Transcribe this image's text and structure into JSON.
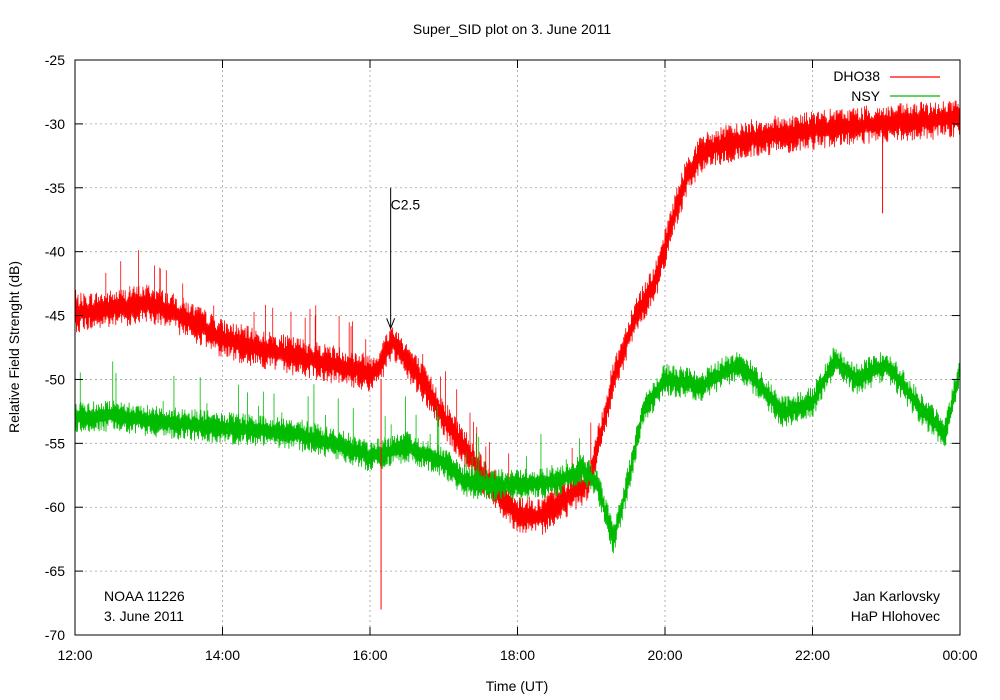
{
  "chart_data": {
    "type": "line",
    "title": "Super_SID plot on 3. June 2011",
    "xlabel": "Time (UT)",
    "ylabel": "Relative Field Strenght (dB)",
    "xlim": [
      0,
      12
    ],
    "ylim": [
      -70,
      -25
    ],
    "x_tick_values": [
      0,
      2,
      4,
      6,
      8,
      10,
      12
    ],
    "x_tick_labels": [
      "12:00",
      "14:00",
      "16:00",
      "18:00",
      "20:00",
      "22:00",
      "00:00"
    ],
    "y_ticks": [
      -70,
      -65,
      -60,
      -55,
      -50,
      -45,
      -40,
      -35,
      -30,
      -25
    ],
    "grid": true,
    "legend_position": "top-right",
    "series": [
      {
        "name": "DHO38",
        "color": "#ff0000",
        "x": [
          0,
          0.5,
          1.0,
          1.5,
          2.0,
          2.5,
          3.0,
          3.5,
          4.0,
          4.1,
          4.3,
          4.5,
          4.8,
          5.0,
          5.3,
          5.6,
          6.0,
          6.3,
          6.6,
          6.9,
          7.0,
          7.3,
          7.6,
          7.9,
          8.1,
          8.3,
          8.5,
          8.7,
          9.0,
          9.3,
          9.6,
          10.0,
          10.5,
          11.0,
          11.5,
          12.0
        ],
        "values": [
          -44.8,
          -44.5,
          -44.0,
          -45.2,
          -46.8,
          -47.6,
          -48.2,
          -48.8,
          -49.5,
          -49.2,
          -47.0,
          -48.5,
          -51.0,
          -53.0,
          -55.5,
          -58.0,
          -60.5,
          -60.8,
          -59.5,
          -58.3,
          -57.5,
          -50.0,
          -45.0,
          -42.0,
          -37.5,
          -34.0,
          -32.3,
          -31.8,
          -31.4,
          -31.0,
          -30.8,
          -30.5,
          -30.2,
          -30.0,
          -29.8,
          -29.5
        ]
      },
      {
        "name": "NSY",
        "color": "#00bb00",
        "x": [
          0,
          0.5,
          1.0,
          1.5,
          2.0,
          2.5,
          3.0,
          3.5,
          4.0,
          4.2,
          4.5,
          5.0,
          5.3,
          5.6,
          6.0,
          6.3,
          6.6,
          6.9,
          7.1,
          7.3,
          7.5,
          7.7,
          8.0,
          8.5,
          9.0,
          9.3,
          9.6,
          10.0,
          10.3,
          10.6,
          11.0,
          11.5,
          11.8,
          12.0
        ],
        "values": [
          -53.0,
          -52.8,
          -53.2,
          -53.5,
          -53.8,
          -54.0,
          -54.3,
          -55.0,
          -56.0,
          -55.7,
          -55.3,
          -56.5,
          -58.0,
          -58.3,
          -58.2,
          -58.1,
          -57.8,
          -57.0,
          -58.5,
          -62.5,
          -58.0,
          -52.5,
          -50.0,
          -50.5,
          -48.8,
          -50.5,
          -52.6,
          -51.8,
          -48.5,
          -50.0,
          -48.8,
          -52.5,
          -54.2,
          -49.2
        ]
      }
    ],
    "spikes": [
      {
        "series": "DHO38",
        "x": 4.15,
        "y_from": -50.0,
        "y_to": -68.0
      },
      {
        "series": "DHO38",
        "x": 10.95,
        "y_from": -30.5,
        "y_to": -37.0
      }
    ],
    "flare_annotation": {
      "label": "C2.5",
      "x": 4.28,
      "y_text": -36.3,
      "y_arrow_start": -35.0,
      "y_arrow_end": -46.0
    },
    "annotations_left": [
      "NOAA 11226",
      "3. June 2011"
    ],
    "annotations_right": [
      "Jan Karlovsky",
      "HaP Hlohovec"
    ]
  }
}
